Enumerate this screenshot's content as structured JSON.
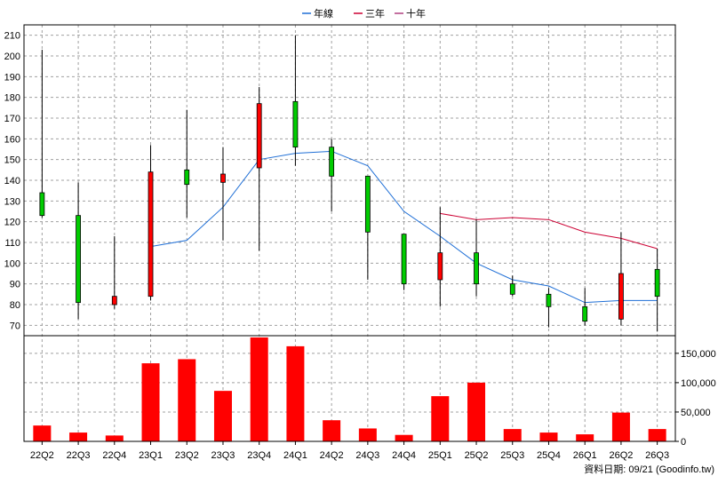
{
  "chart_data": [
    {
      "type": "candlestick",
      "legend": [
        {
          "name": "年線",
          "color": "#1f6fd6"
        },
        {
          "name": "三年",
          "color": "#cc0033"
        },
        {
          "name": "十年",
          "color": "#b04080"
        }
      ],
      "ylim": [
        65,
        215
      ],
      "yticks": [
        70,
        80,
        90,
        100,
        110,
        120,
        130,
        140,
        150,
        160,
        170,
        180,
        190,
        200,
        210
      ],
      "up_color": "#ff0000",
      "down_color": "#00cc00",
      "categories": [
        "22Q2",
        "22Q3",
        "22Q4",
        "23Q1",
        "23Q2",
        "23Q3",
        "23Q4",
        "24Q1",
        "24Q2",
        "24Q3",
        "24Q4",
        "25Q1",
        "25Q2",
        "25Q3",
        "25Q4",
        "26Q1",
        "26Q2",
        "26Q3"
      ],
      "ohlc": [
        {
          "open": 134,
          "high": 203,
          "low": 122,
          "close": 123
        },
        {
          "open": 123,
          "high": 139,
          "low": 73,
          "close": 81
        },
        {
          "open": 80,
          "high": 113,
          "low": 78,
          "close": 84
        },
        {
          "open": 84,
          "high": 157,
          "low": 82,
          "close": 144
        },
        {
          "open": 145,
          "high": 174,
          "low": 122,
          "close": 138
        },
        {
          "open": 139,
          "high": 156,
          "low": 111,
          "close": 143
        },
        {
          "open": 146,
          "high": 185,
          "low": 106,
          "close": 177
        },
        {
          "open": 178,
          "high": 210,
          "low": 147,
          "close": 156
        },
        {
          "open": 156,
          "high": 160,
          "low": 125,
          "close": 142
        },
        {
          "open": 142,
          "high": 142,
          "low": 92,
          "close": 115
        },
        {
          "open": 114,
          "high": 114,
          "low": 87,
          "close": 90
        },
        {
          "open": 92,
          "high": 127,
          "low": 79,
          "close": 105
        },
        {
          "open": 105,
          "high": 121,
          "low": 84,
          "close": 90
        },
        {
          "open": 90,
          "high": 94,
          "low": 84,
          "close": 85
        },
        {
          "open": 85,
          "high": 88,
          "low": 69,
          "close": 79
        },
        {
          "open": 79,
          "high": 88,
          "low": 70,
          "close": 72
        },
        {
          "open": 73,
          "high": 115,
          "low": 70,
          "close": 95
        },
        {
          "open": 97,
          "high": 107,
          "low": 67,
          "close": 84
        }
      ],
      "series": [
        {
          "name": "年線",
          "color": "#1f6fd6",
          "values": [
            null,
            null,
            null,
            108,
            111,
            127,
            150,
            153,
            154,
            147,
            125,
            113,
            100,
            92,
            89,
            81,
            82,
            82
          ]
        },
        {
          "name": "三年",
          "color": "#cc0033",
          "values": [
            null,
            null,
            null,
            null,
            null,
            null,
            null,
            null,
            null,
            null,
            null,
            124,
            121,
            122,
            121,
            115,
            112,
            107
          ]
        }
      ]
    },
    {
      "type": "bar",
      "color": "#ff0000",
      "ylim": [
        0,
        180000
      ],
      "yticks": [
        0,
        50000,
        100000,
        150000
      ],
      "ytick_labels": [
        "0",
        "50,000",
        "100,000",
        "150,000"
      ],
      "categories": [
        "22Q2",
        "22Q3",
        "22Q4",
        "23Q1",
        "23Q2",
        "23Q3",
        "23Q4",
        "24Q1",
        "24Q2",
        "24Q3",
        "24Q4",
        "25Q1",
        "25Q2",
        "25Q3",
        "25Q4",
        "26Q1",
        "26Q2",
        "26Q3"
      ],
      "values": [
        27000,
        15000,
        10000,
        133000,
        140000,
        86000,
        177000,
        162000,
        36000,
        22000,
        11000,
        77000,
        100000,
        21000,
        15000,
        12000,
        49000,
        21000
      ]
    }
  ],
  "footer": "資料日期: 09/21 (Goodinfo.tw)"
}
